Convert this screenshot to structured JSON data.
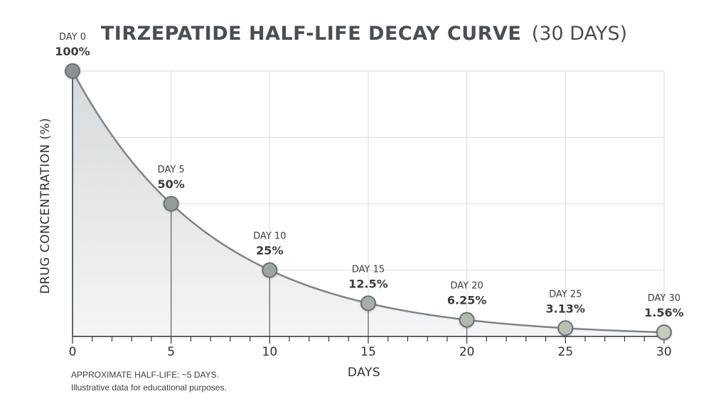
{
  "title_main": "TIRZEPATIDE HALF-LIFE DECAY CURVE",
  "title_sub": "(30 DAYS)",
  "notes": {
    "line1": "APPROXIMATE HALF-LIFE: ~5 DAYS.",
    "line2": "Illustrative data for educational purposes."
  },
  "colors": {
    "curve": "#7e8386",
    "fill_top": "#d6d9db",
    "fill_bottom": "#f4f5f6",
    "grid": "#d9dcde",
    "axis": "#2f3235",
    "marker_start": "#8c9194",
    "marker_end": "#c3cbb9"
  },
  "chart_data": {
    "type": "line",
    "title": "TIRZEPATIDE HALF-LIFE DECAY CURVE (30 DAYS)",
    "xlabel": "DAYS",
    "ylabel": "DRUG CONCENTRATION (%)",
    "xlim": [
      0,
      30
    ],
    "ylim": [
      0,
      100
    ],
    "xticks": [
      "0",
      "5",
      "10",
      "15",
      "20",
      "25",
      "30"
    ],
    "grid": true,
    "area_fill": true,
    "points": [
      {
        "x": 0,
        "y": 100,
        "day_label": "DAY 0",
        "value_label": "100%"
      },
      {
        "x": 5,
        "y": 50,
        "day_label": "DAY 5",
        "value_label": "50%"
      },
      {
        "x": 10,
        "y": 25,
        "day_label": "DAY 10",
        "value_label": "25%"
      },
      {
        "x": 15,
        "y": 12.5,
        "day_label": "DAY 15",
        "value_label": "12.5%"
      },
      {
        "x": 20,
        "y": 6.25,
        "day_label": "DAY 20",
        "value_label": "6.25%"
      },
      {
        "x": 25,
        "y": 3.13,
        "day_label": "DAY 25",
        "value_label": "3.13%"
      },
      {
        "x": 30,
        "y": 1.56,
        "day_label": "DAY 30",
        "value_label": "1.56%"
      }
    ]
  }
}
